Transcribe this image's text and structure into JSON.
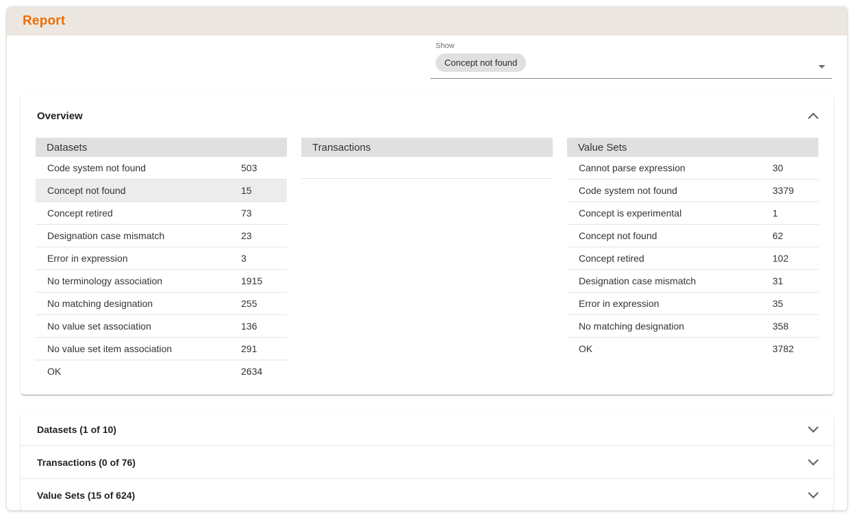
{
  "app": {
    "title": "Report"
  },
  "show_filter": {
    "label": "Show",
    "selected": "Concept not found"
  },
  "overview_panel": {
    "title": "Overview",
    "expanded": true,
    "tables": [
      {
        "title": "Datasets",
        "rows": [
          {
            "label": "Code system not found",
            "value": "503"
          },
          {
            "label": "Concept not found",
            "value": "15",
            "highlighted": true
          },
          {
            "label": "Concept retired",
            "value": "73"
          },
          {
            "label": "Designation case mismatch",
            "value": "23"
          },
          {
            "label": "Error in expression",
            "value": "3"
          },
          {
            "label": "No terminology association",
            "value": "1915"
          },
          {
            "label": "No matching designation",
            "value": "255"
          },
          {
            "label": "No value set association",
            "value": "136"
          },
          {
            "label": "No value set item association",
            "value": "291"
          },
          {
            "label": "OK",
            "value": "2634"
          }
        ]
      },
      {
        "title": "Transactions",
        "rows": []
      },
      {
        "title": "Value Sets",
        "rows": [
          {
            "label": "Cannot parse expression",
            "value": "30"
          },
          {
            "label": "Code system not found",
            "value": "3379"
          },
          {
            "label": "Concept is experimental",
            "value": "1"
          },
          {
            "label": "Concept not found",
            "value": "62"
          },
          {
            "label": "Concept retired",
            "value": "102"
          },
          {
            "label": "Designation case mismatch",
            "value": "31"
          },
          {
            "label": "Error in expression",
            "value": "35"
          },
          {
            "label": "No matching designation",
            "value": "358"
          },
          {
            "label": "OK",
            "value": "3782"
          }
        ]
      }
    ]
  },
  "collapsed_panels": [
    {
      "title": "Datasets (1 of 10)"
    },
    {
      "title": "Transactions (0 of 76)"
    },
    {
      "title": "Value Sets (15 of 624)"
    }
  ],
  "colors": {
    "header_bg": "#ece8e1",
    "accent_orange": "#ef6c00",
    "table_header_bg": "#e0e0e0",
    "highlight_row_bg": "#ececec"
  }
}
